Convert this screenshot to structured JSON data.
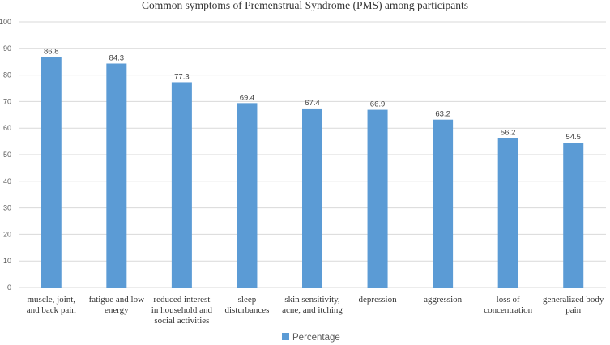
{
  "chart_data": {
    "type": "bar",
    "title": "Common symptoms of Premenstrual Syndrome (PMS) among participants",
    "categories": [
      [
        "muscle, joint,",
        "and back pain"
      ],
      [
        "fatigue and low",
        "energy"
      ],
      [
        "reduced interest",
        "in household and",
        "social activities"
      ],
      [
        "sleep",
        "disturbances"
      ],
      [
        "skin sensitivity,",
        "acne, and itching"
      ],
      [
        "depression"
      ],
      [
        "aggression"
      ],
      [
        "loss of",
        "concentration"
      ],
      [
        "generalized body",
        "pain"
      ]
    ],
    "series": [
      {
        "name": "Percentage",
        "color": "#5b9bd5",
        "values": [
          86.8,
          84.3,
          77.3,
          69.4,
          67.4,
          66.9,
          63.2,
          56.2,
          54.5
        ],
        "labels": [
          "86.8",
          "84.3",
          "77.3",
          "69.4",
          "67.4",
          "66.9",
          "63.2",
          "56.2",
          "54.5"
        ]
      }
    ],
    "ylim": [
      0,
      100
    ],
    "yticks": [
      0,
      10,
      20,
      30,
      40,
      50,
      60,
      70,
      80,
      90,
      100
    ],
    "grid": true,
    "gridColor": "#d9d9d9",
    "legend": "bottom-center"
  }
}
